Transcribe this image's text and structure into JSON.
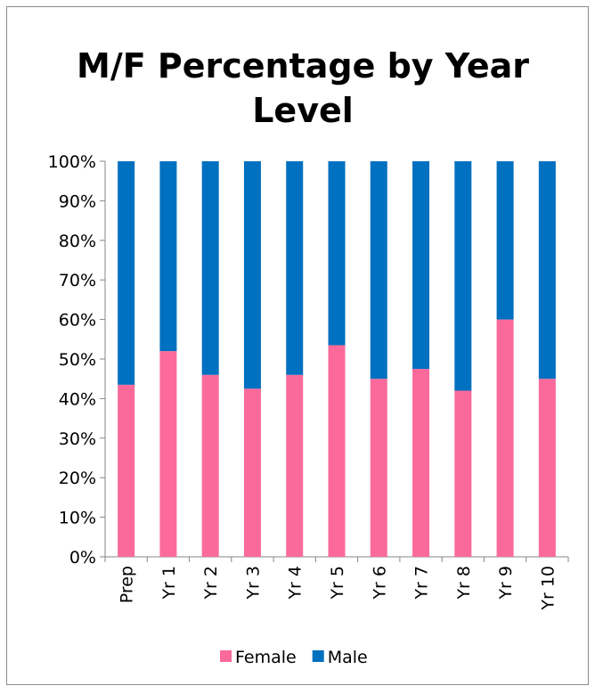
{
  "chart_data": {
    "type": "stacked_bar",
    "title": "M/F Percentage by Year Level",
    "categories": [
      "Prep",
      "Yr 1",
      "Yr 2",
      "Yr 3",
      "Yr 4",
      "Yr 5",
      "Yr 6",
      "Yr 7",
      "Yr 8",
      "Yr 9",
      "Yr 10"
    ],
    "series": [
      {
        "name": "Female",
        "color": "#fb6a9b",
        "values": [
          43.5,
          52,
          46,
          42.5,
          46,
          53.5,
          45,
          47.5,
          42,
          60,
          45
        ]
      },
      {
        "name": "Male",
        "color": "#0070c0",
        "values": [
          56.5,
          48,
          54,
          57.5,
          54,
          46.5,
          55,
          52.5,
          58,
          40,
          55
        ]
      }
    ],
    "ylim": [
      0,
      100
    ],
    "yticks": [
      {
        "value": 0,
        "label": "0%"
      },
      {
        "value": 10,
        "label": "10%"
      },
      {
        "value": 20,
        "label": "20%"
      },
      {
        "value": 30,
        "label": "30%"
      },
      {
        "value": 40,
        "label": "40%"
      },
      {
        "value": 50,
        "label": "50%"
      },
      {
        "value": 60,
        "label": "60%"
      },
      {
        "value": 70,
        "label": "70%"
      },
      {
        "value": 80,
        "label": "80%"
      },
      {
        "value": 90,
        "label": "90%"
      },
      {
        "value": 100,
        "label": "100%"
      }
    ],
    "grid": false,
    "legend": "bottom"
  }
}
